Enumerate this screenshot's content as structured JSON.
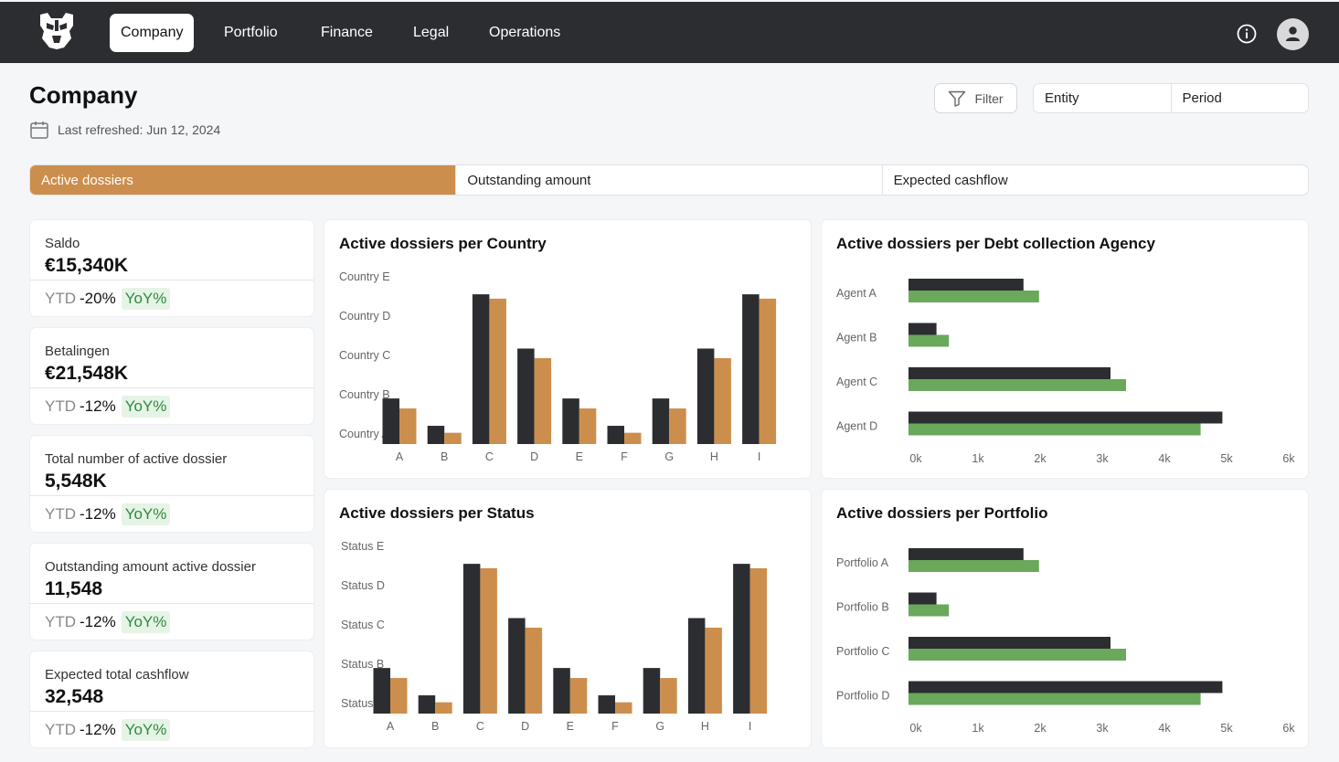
{
  "nav": {
    "tabs": [
      {
        "label": "Company",
        "active": true
      },
      {
        "label": "Portfolio",
        "active": false
      },
      {
        "label": "Finance",
        "active": false
      },
      {
        "label": "Legal",
        "active": false
      },
      {
        "label": "Operations",
        "active": false
      }
    ],
    "icons": {
      "logo": "robot-mask-logo",
      "info": "info-icon",
      "user": "user-icon"
    }
  },
  "header": {
    "title": "Company",
    "last_refreshed": "Last refreshed: Jun 12, 2024",
    "filter_label": "Filter",
    "entity_label": "Entity",
    "period_label": "Period"
  },
  "metric_tabs": [
    {
      "label": "Active dossiers",
      "active": true
    },
    {
      "label": "Outstanding amount",
      "active": false
    },
    {
      "label": "Expected cashflow",
      "active": false
    }
  ],
  "kpis": [
    {
      "label": "Saldo",
      "value": "€15,340K",
      "ytd": "YTD",
      "change": "-20%",
      "yoy": "YoY%"
    },
    {
      "label": "Betalingen",
      "value": "€21,548K",
      "ytd": "YTD",
      "change": "-12%",
      "yoy": "YoY%"
    },
    {
      "label": "Total number of active dossier",
      "value": "5,548K",
      "ytd": "YTD",
      "change": "-12%",
      "yoy": "YoY%"
    },
    {
      "label": "Outstanding amount active dossier",
      "value": "11,548",
      "ytd": "YTD",
      "change": "-12%",
      "yoy": "YoY%"
    },
    {
      "label": "Expected total cashflow",
      "value": "32,548",
      "ytd": "YTD",
      "change": "-12%",
      "yoy": "YoY%"
    }
  ],
  "colors": {
    "dark_series": "#2b2d31",
    "orange_series": "#cc8e4d",
    "green_series": "#6aa85b",
    "accent": "#cc8e4d"
  },
  "chart_data": [
    {
      "type": "bar",
      "title": "Active dossiers per Country",
      "categories": [
        "A",
        "B",
        "C",
        "D",
        "E",
        "F",
        "G",
        "H",
        "I"
      ],
      "y_tick_labels": [
        "Country A",
        "Country B",
        "Country C",
        "Country D",
        "Country E"
      ],
      "ylim": [
        0,
        4
      ],
      "series": [
        {
          "values": [
            1.05,
            0.42,
            3.45,
            2.2,
            1.05,
            0.42,
            1.05,
            2.2,
            3.45
          ]
        },
        {
          "values": [
            0.82,
            0.26,
            3.35,
            1.98,
            0.82,
            0.26,
            0.82,
            1.98,
            3.35
          ]
        }
      ]
    },
    {
      "type": "bar",
      "orientation": "horizontal",
      "title": "Active dossiers per Debt collection Agency",
      "categories": [
        "Agent A",
        "Agent B",
        "Agent C",
        "Agent D"
      ],
      "x_tick_labels": [
        "0k",
        "1k",
        "2k",
        "3k",
        "4k",
        "5k",
        "6k"
      ],
      "xlim": [
        0,
        6000
      ],
      "series": [
        {
          "values": [
            1850,
            450,
            3250,
            5050
          ]
        },
        {
          "values": [
            2100,
            650,
            3500,
            4700
          ]
        }
      ]
    },
    {
      "type": "bar",
      "title": "Active dossiers per Status",
      "categories": [
        "A",
        "B",
        "C",
        "D",
        "E",
        "F",
        "G",
        "H",
        "I"
      ],
      "y_tick_labels": [
        "Status A",
        "Status B",
        "Status C",
        "Status D",
        "Status E"
      ],
      "ylim": [
        0,
        4
      ],
      "series": [
        {
          "values": [
            1.05,
            0.42,
            3.45,
            2.2,
            1.05,
            0.42,
            1.05,
            2.2,
            3.45
          ]
        },
        {
          "values": [
            0.82,
            0.26,
            3.35,
            1.98,
            0.82,
            0.26,
            0.82,
            1.98,
            3.35
          ]
        }
      ]
    },
    {
      "type": "bar",
      "orientation": "horizontal",
      "title": "Active dossiers per Portfolio",
      "categories": [
        "Portfolio A",
        "Portfolio B",
        "Portfolio C",
        "Portfolio D"
      ],
      "x_tick_labels": [
        "0k",
        "1k",
        "2k",
        "3k",
        "4k",
        "5k",
        "6k"
      ],
      "xlim": [
        0,
        6000
      ],
      "series": [
        {
          "values": [
            1850,
            450,
            3250,
            5050
          ]
        },
        {
          "values": [
            2100,
            650,
            3500,
            4700
          ]
        }
      ]
    }
  ]
}
